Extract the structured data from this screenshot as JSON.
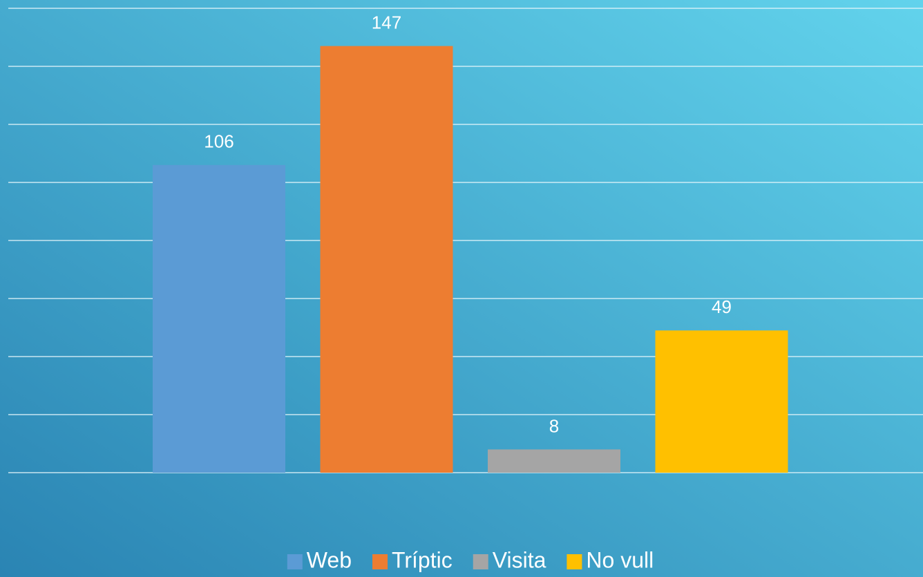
{
  "chart_data": {
    "type": "bar",
    "series": [
      {
        "name": "Web",
        "color": "#5b9bd5",
        "values": [
          106
        ]
      },
      {
        "name": "Tríptic",
        "color": "#ed7d31",
        "values": [
          147
        ]
      },
      {
        "name": "Visita",
        "color": "#a5a5a5",
        "values": [
          8
        ]
      },
      {
        "name": "No vull",
        "color": "#ffc000",
        "values": [
          49
        ]
      }
    ],
    "ylim": [
      0,
      160
    ],
    "yticks": [
      0,
      20,
      40,
      60,
      80,
      100,
      120,
      140,
      160
    ],
    "grid": true,
    "legend": "bottom"
  }
}
